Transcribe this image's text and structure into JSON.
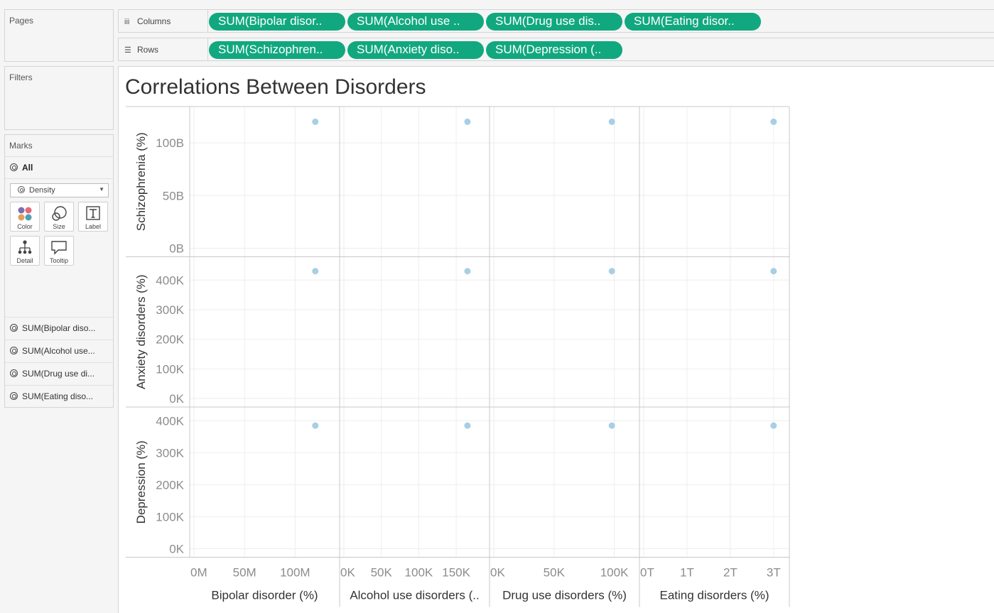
{
  "left_panels": {
    "pages_title": "Pages",
    "filters_title": "Filters",
    "marks": {
      "title": "Marks",
      "all_label": "All",
      "mark_type": "Density",
      "buttons": [
        {
          "label": "Color",
          "icon": "color-icon"
        },
        {
          "label": "Size",
          "icon": "size-icon"
        },
        {
          "label": "Label",
          "icon": "label-icon"
        },
        {
          "label": "Detail",
          "icon": "detail-icon"
        },
        {
          "label": "Tooltip",
          "icon": "tooltip-icon"
        }
      ],
      "fields": [
        "SUM(Bipolar diso...",
        "SUM(Alcohol use...",
        "SUM(Drug use di...",
        "SUM(Eating diso..."
      ]
    }
  },
  "shelves": {
    "columns_label": "Columns",
    "rows_label": "Rows",
    "columns_pills": [
      "SUM(Bipolar disor..",
      "SUM(Alcohol use ..",
      "SUM(Drug use dis..",
      "SUM(Eating disor.."
    ],
    "rows_pills": [
      "SUM(Schizophren..",
      "SUM(Anxiety diso..",
      "SUM(Depression (.."
    ]
  },
  "chart_data": {
    "type": "scatter",
    "title": "Correlations Between Disorders",
    "mark_color": "#9ecae1",
    "grid": true,
    "columns": [
      {
        "title": "Bipolar disorder (%)",
        "range": [
          0,
          137000000
        ],
        "ticks": [
          {
            "v": 0,
            "label": "0M"
          },
          {
            "v": 50000000,
            "label": "50M"
          },
          {
            "v": 100000000,
            "label": "100M"
          }
        ],
        "value": 120000000
      },
      {
        "title": "Alcohol use disorders (..",
        "range": [
          0,
          185000
        ],
        "ticks": [
          {
            "v": 0,
            "label": "0K"
          },
          {
            "v": 50000,
            "label": "50K"
          },
          {
            "v": 100000,
            "label": "100K"
          },
          {
            "v": 150000,
            "label": "150K"
          }
        ],
        "value": 165000
      },
      {
        "title": "Drug use disorders (%)",
        "range": [
          0,
          115000
        ],
        "ticks": [
          {
            "v": 0,
            "label": "0K"
          },
          {
            "v": 50000,
            "label": "50K"
          },
          {
            "v": 100000,
            "label": "100K"
          }
        ],
        "value": 98000
      },
      {
        "title": "Eating disorders (%)",
        "range": [
          0,
          3200000000000
        ],
        "ticks": [
          {
            "v": 0,
            "label": "0T"
          },
          {
            "v": 1000000000000,
            "label": "1T"
          },
          {
            "v": 2000000000000,
            "label": "2T"
          },
          {
            "v": 3000000000000,
            "label": "3T"
          }
        ],
        "value": 3000000000000
      }
    ],
    "rows": [
      {
        "title": "Schizophrenia (%)",
        "range": [
          0,
          125000000000
        ],
        "ticks": [
          {
            "v": 0,
            "label": "0B"
          },
          {
            "v": 50000000000,
            "label": "50B"
          },
          {
            "v": 100000000000,
            "label": "100B"
          }
        ],
        "value": 120000000000
      },
      {
        "title": "Anxiety disorders (%)",
        "range": [
          0,
          445000
        ],
        "ticks": [
          {
            "v": 0,
            "label": "0K"
          },
          {
            "v": 100000,
            "label": "100K"
          },
          {
            "v": 200000,
            "label": "200K"
          },
          {
            "v": 300000,
            "label": "300K"
          },
          {
            "v": 400000,
            "label": "400K"
          }
        ],
        "value": 430000
      },
      {
        "title": "Depression (%)",
        "range": [
          0,
          412000
        ],
        "ticks": [
          {
            "v": 0,
            "label": "0K"
          },
          {
            "v": 100000,
            "label": "100K"
          },
          {
            "v": 200000,
            "label": "200K"
          },
          {
            "v": 300000,
            "label": "300K"
          },
          {
            "v": 400000,
            "label": "400K"
          }
        ],
        "value": 385000
      }
    ]
  }
}
